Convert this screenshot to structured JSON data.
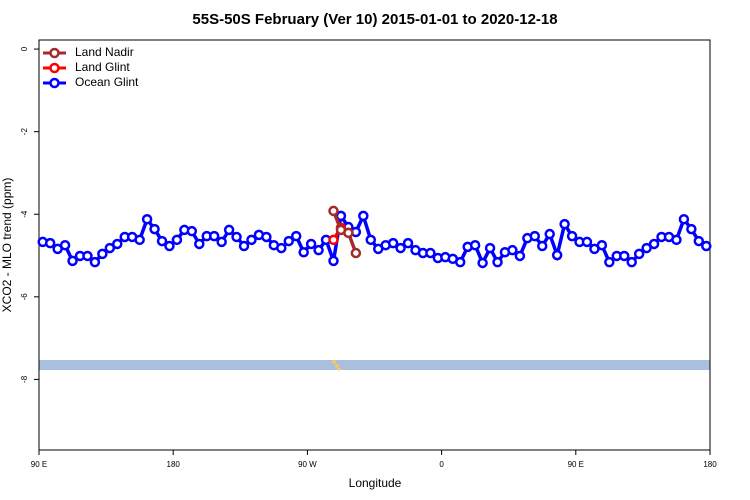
{
  "chart_data": {
    "type": "line",
    "title": "55S-50S February (Ver 10)   2015-01-01 to 2020-12-18",
    "x_label": "Longitude",
    "y_label": "XCO2 - MLO trend (ppm)",
    "xlim": [
      90,
      540
    ],
    "ylim": [
      -9.71,
      0.22
    ],
    "xticks": [
      {
        "value": 90,
        "label": "90 E"
      },
      {
        "value": 180,
        "label": "180"
      },
      {
        "value": 270,
        "label": "90 W"
      },
      {
        "value": 360,
        "label": "0"
      },
      {
        "value": 450,
        "label": "90 E"
      },
      {
        "value": 540,
        "label": "180"
      }
    ],
    "yticks": [
      0,
      -2,
      -4,
      -6,
      -8
    ],
    "legend": "top-left",
    "series": [
      {
        "name": "Land Nadir",
        "color": "#a52a2a",
        "x": [
          287.5,
          292.5,
          297.5,
          302.5
        ],
        "values": [
          -3.92,
          -4.38,
          -4.45,
          -4.94
        ]
      },
      {
        "name": "Land Glint",
        "color": "#ff0000",
        "x": [
          287.5,
          292.5,
          297.5
        ],
        "values": [
          -4.62,
          -4.33,
          -4.45
        ]
      },
      {
        "name": "Ocean Glint",
        "color": "#0000ff",
        "x": [
          92.5,
          97.5,
          102.5,
          107.5,
          112.5,
          117.5,
          122.5,
          127.5,
          132.5,
          137.5,
          142.5,
          147.5,
          152.5,
          157.5,
          162.5,
          167.5,
          172.5,
          177.5,
          182.5,
          187.5,
          192.5,
          197.5,
          202.5,
          207.5,
          212.5,
          217.5,
          222.5,
          227.5,
          232.5,
          237.5,
          242.5,
          247.5,
          252.5,
          257.5,
          262.5,
          267.5,
          272.5,
          277.5,
          282.5,
          287.5,
          292.5,
          297.5,
          302.5,
          307.5,
          312.5,
          317.5,
          322.5,
          327.5,
          332.5,
          337.5,
          342.5,
          347.5,
          352.5,
          357.5,
          362.5,
          367.5,
          372.5,
          377.5,
          382.5,
          387.5,
          392.5,
          397.5,
          402.5,
          407.5,
          412.5,
          417.5,
          422.5,
          427.5,
          432.5,
          437.5,
          442.5,
          447.5,
          452.5,
          457.5,
          462.5,
          467.5,
          472.5,
          477.5,
          482.5,
          487.5,
          492.5,
          497.5,
          502.5,
          507.5,
          512.5,
          517.5,
          522.5,
          527.5,
          532.5,
          537.5
        ],
        "values": [
          -4.67,
          -4.7,
          -4.84,
          -4.75,
          -5.13,
          -5.01,
          -5.01,
          -5.16,
          -4.96,
          -4.82,
          -4.72,
          -4.55,
          -4.55,
          -4.62,
          -4.12,
          -4.36,
          -4.65,
          -4.77,
          -4.62,
          -4.38,
          -4.41,
          -4.72,
          -4.53,
          -4.53,
          -4.67,
          -4.38,
          -4.55,
          -4.77,
          -4.62,
          -4.5,
          -4.55,
          -4.75,
          -4.82,
          -4.65,
          -4.53,
          -4.92,
          -4.72,
          -4.87,
          -4.62,
          -5.13,
          -4.04,
          -4.31,
          -4.43,
          -4.04,
          -4.62,
          -4.84,
          -4.75,
          -4.7,
          -4.82,
          -4.7,
          -4.87,
          -4.94,
          -4.94,
          -5.06,
          -5.04,
          -5.08,
          -5.16,
          -4.79,
          -4.75,
          -5.18,
          -4.82,
          -5.16,
          -4.92,
          -4.87,
          -5.01,
          -4.58,
          -4.53,
          -4.77,
          -4.48,
          -4.99,
          -4.24,
          -4.53,
          -4.67,
          -4.67,
          -4.84,
          -4.75,
          -5.16,
          -5.01,
          -5.01,
          -5.16,
          -4.96,
          -4.82,
          -4.72,
          -4.55,
          -4.55,
          -4.62,
          -4.12,
          -4.36,
          -4.65,
          -4.77
        ]
      }
    ]
  }
}
